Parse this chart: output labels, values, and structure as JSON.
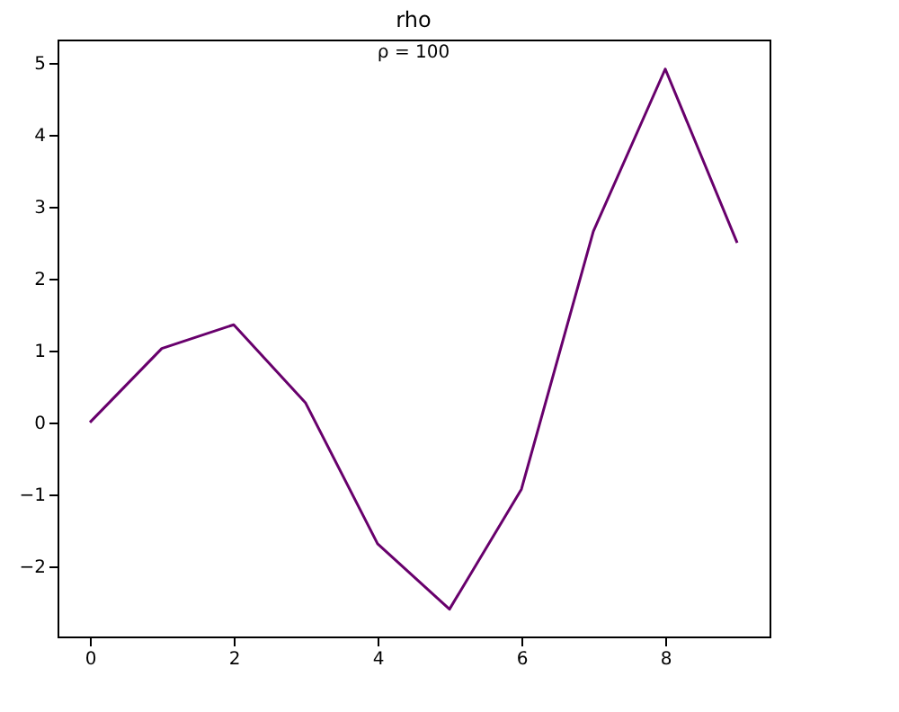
{
  "chart_data": {
    "type": "line",
    "title": "rho",
    "annotations": [
      "ρ = 100"
    ],
    "x": [
      0,
      1,
      2,
      3,
      4,
      5,
      6,
      7,
      8,
      9
    ],
    "series": [
      {
        "color": "#68006c",
        "values": [
          0,
          1.03,
          1.36,
          0.27,
          -1.69,
          -2.6,
          -0.93,
          2.66,
          4.92,
          2.5
        ]
      }
    ],
    "xlim": [
      -0.45,
      9.45
    ],
    "xticks": [
      0,
      2,
      4,
      6,
      8
    ],
    "ylim": [
      -2.98,
      5.33
    ],
    "yticks": [
      -2,
      -1,
      0,
      1,
      2,
      3,
      4,
      5
    ],
    "grid": false,
    "marker": "none",
    "line_style": "solid"
  }
}
